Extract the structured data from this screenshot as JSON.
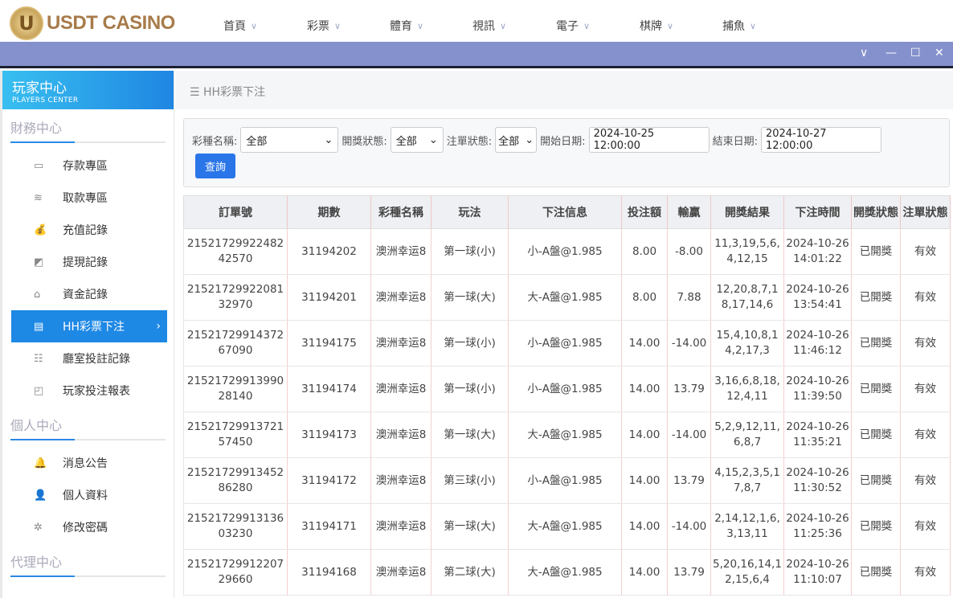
{
  "brand": {
    "name": "USDT CASINO",
    "coin_letter": "U"
  },
  "nav": [
    {
      "label": "首頁"
    },
    {
      "label": "彩票"
    },
    {
      "label": "體育"
    },
    {
      "label": "視訊"
    },
    {
      "label": "電子"
    },
    {
      "label": "棋牌"
    },
    {
      "label": "捕魚"
    }
  ],
  "window_controls": {
    "collapse": "∨",
    "minimize": "—",
    "maximize": "☐",
    "close": "✕"
  },
  "sidebar": {
    "title": "玩家中心",
    "subtitle": "PLAYERS CENTER",
    "sections": [
      {
        "title": "財務中心",
        "items": [
          {
            "label": "存款專區",
            "icon": "card-icon"
          },
          {
            "label": "取款專區",
            "icon": "cash-icon"
          },
          {
            "label": "充值記錄",
            "icon": "moneybag-icon"
          },
          {
            "label": "提現記錄",
            "icon": "wallet-icon"
          },
          {
            "label": "資金記錄",
            "icon": "bank-icon"
          },
          {
            "label": "HH彩票下注",
            "icon": "ticket-icon",
            "active": true
          },
          {
            "label": "廳室投註記錄",
            "icon": "list-icon"
          },
          {
            "label": "玩家投注報表",
            "icon": "chart-icon"
          }
        ]
      },
      {
        "title": "個人中心",
        "items": [
          {
            "label": "消息公告",
            "icon": "bell-icon"
          },
          {
            "label": "個人資料",
            "icon": "user-icon"
          },
          {
            "label": "修改密碼",
            "icon": "gear-icon"
          }
        ]
      },
      {
        "title": "代理中心",
        "items": []
      }
    ]
  },
  "breadcrumb": "HH彩票下注",
  "filter": {
    "lottery_label": "彩種名稱:",
    "lottery_value": "全部",
    "draw_label": "開獎狀態:",
    "draw_value": "全部",
    "order_label": "注單狀態:",
    "order_value": "全部",
    "start_label": "開始日期:",
    "start_value": "2024-10-25 12:00:00",
    "end_label": "結束日期:",
    "end_value": "2024-10-27 12:00:00",
    "search": "查詢"
  },
  "table": {
    "headers": [
      "訂單號",
      "期數",
      "彩種名稱",
      "玩法",
      "下注信息",
      "投注額",
      "輸贏",
      "開獎結果",
      "下注時間",
      "開獎狀態",
      "注單狀態"
    ],
    "rows": [
      [
        "2152172992248242570",
        "31194202",
        "澳洲幸运8",
        "第一球(小)",
        "小-A盤@1.985",
        "8.00",
        "-8.00",
        "11,3,19,5,6,4,12,15",
        "2024-10-26 14:01:22",
        "已開獎",
        "有效"
      ],
      [
        "2152172992208132970",
        "31194201",
        "澳洲幸运8",
        "第一球(大)",
        "大-A盤@1.985",
        "8.00",
        "7.88",
        "12,20,8,7,18,17,14,6",
        "2024-10-26 13:54:41",
        "已開獎",
        "有效"
      ],
      [
        "2152172991437267090",
        "31194175",
        "澳洲幸运8",
        "第一球(小)",
        "小-A盤@1.985",
        "14.00",
        "-14.00",
        "15,4,10,8,14,2,17,3",
        "2024-10-26 11:46:12",
        "已開獎",
        "有效"
      ],
      [
        "2152172991399028140",
        "31194174",
        "澳洲幸运8",
        "第一球(小)",
        "小-A盤@1.985",
        "14.00",
        "13.79",
        "3,16,6,8,18,12,4,11",
        "2024-10-26 11:39:50",
        "已開獎",
        "有效"
      ],
      [
        "2152172991372157450",
        "31194173",
        "澳洲幸运8",
        "第一球(大)",
        "大-A盤@1.985",
        "14.00",
        "-14.00",
        "5,2,9,12,11,6,8,7",
        "2024-10-26 11:35:21",
        "已開獎",
        "有效"
      ],
      [
        "2152172991345286280",
        "31194172",
        "澳洲幸运8",
        "第三球(小)",
        "小-A盤@1.985",
        "14.00",
        "13.79",
        "4,15,2,3,5,17,8,7",
        "2024-10-26 11:30:52",
        "已開獎",
        "有效"
      ],
      [
        "2152172991313603230",
        "31194171",
        "澳洲幸运8",
        "第一球(大)",
        "大-A盤@1.985",
        "14.00",
        "-14.00",
        "2,14,12,1,6,3,13,11",
        "2024-10-26 11:25:36",
        "已開獎",
        "有效"
      ],
      [
        "2152172991220729660",
        "31194168",
        "澳洲幸运8",
        "第二球(大)",
        "大-A盤@1.985",
        "14.00",
        "13.79",
        "5,20,16,14,12,15,6,4",
        "2024-10-26 11:10:07",
        "已開獎",
        "有效"
      ]
    ]
  }
}
